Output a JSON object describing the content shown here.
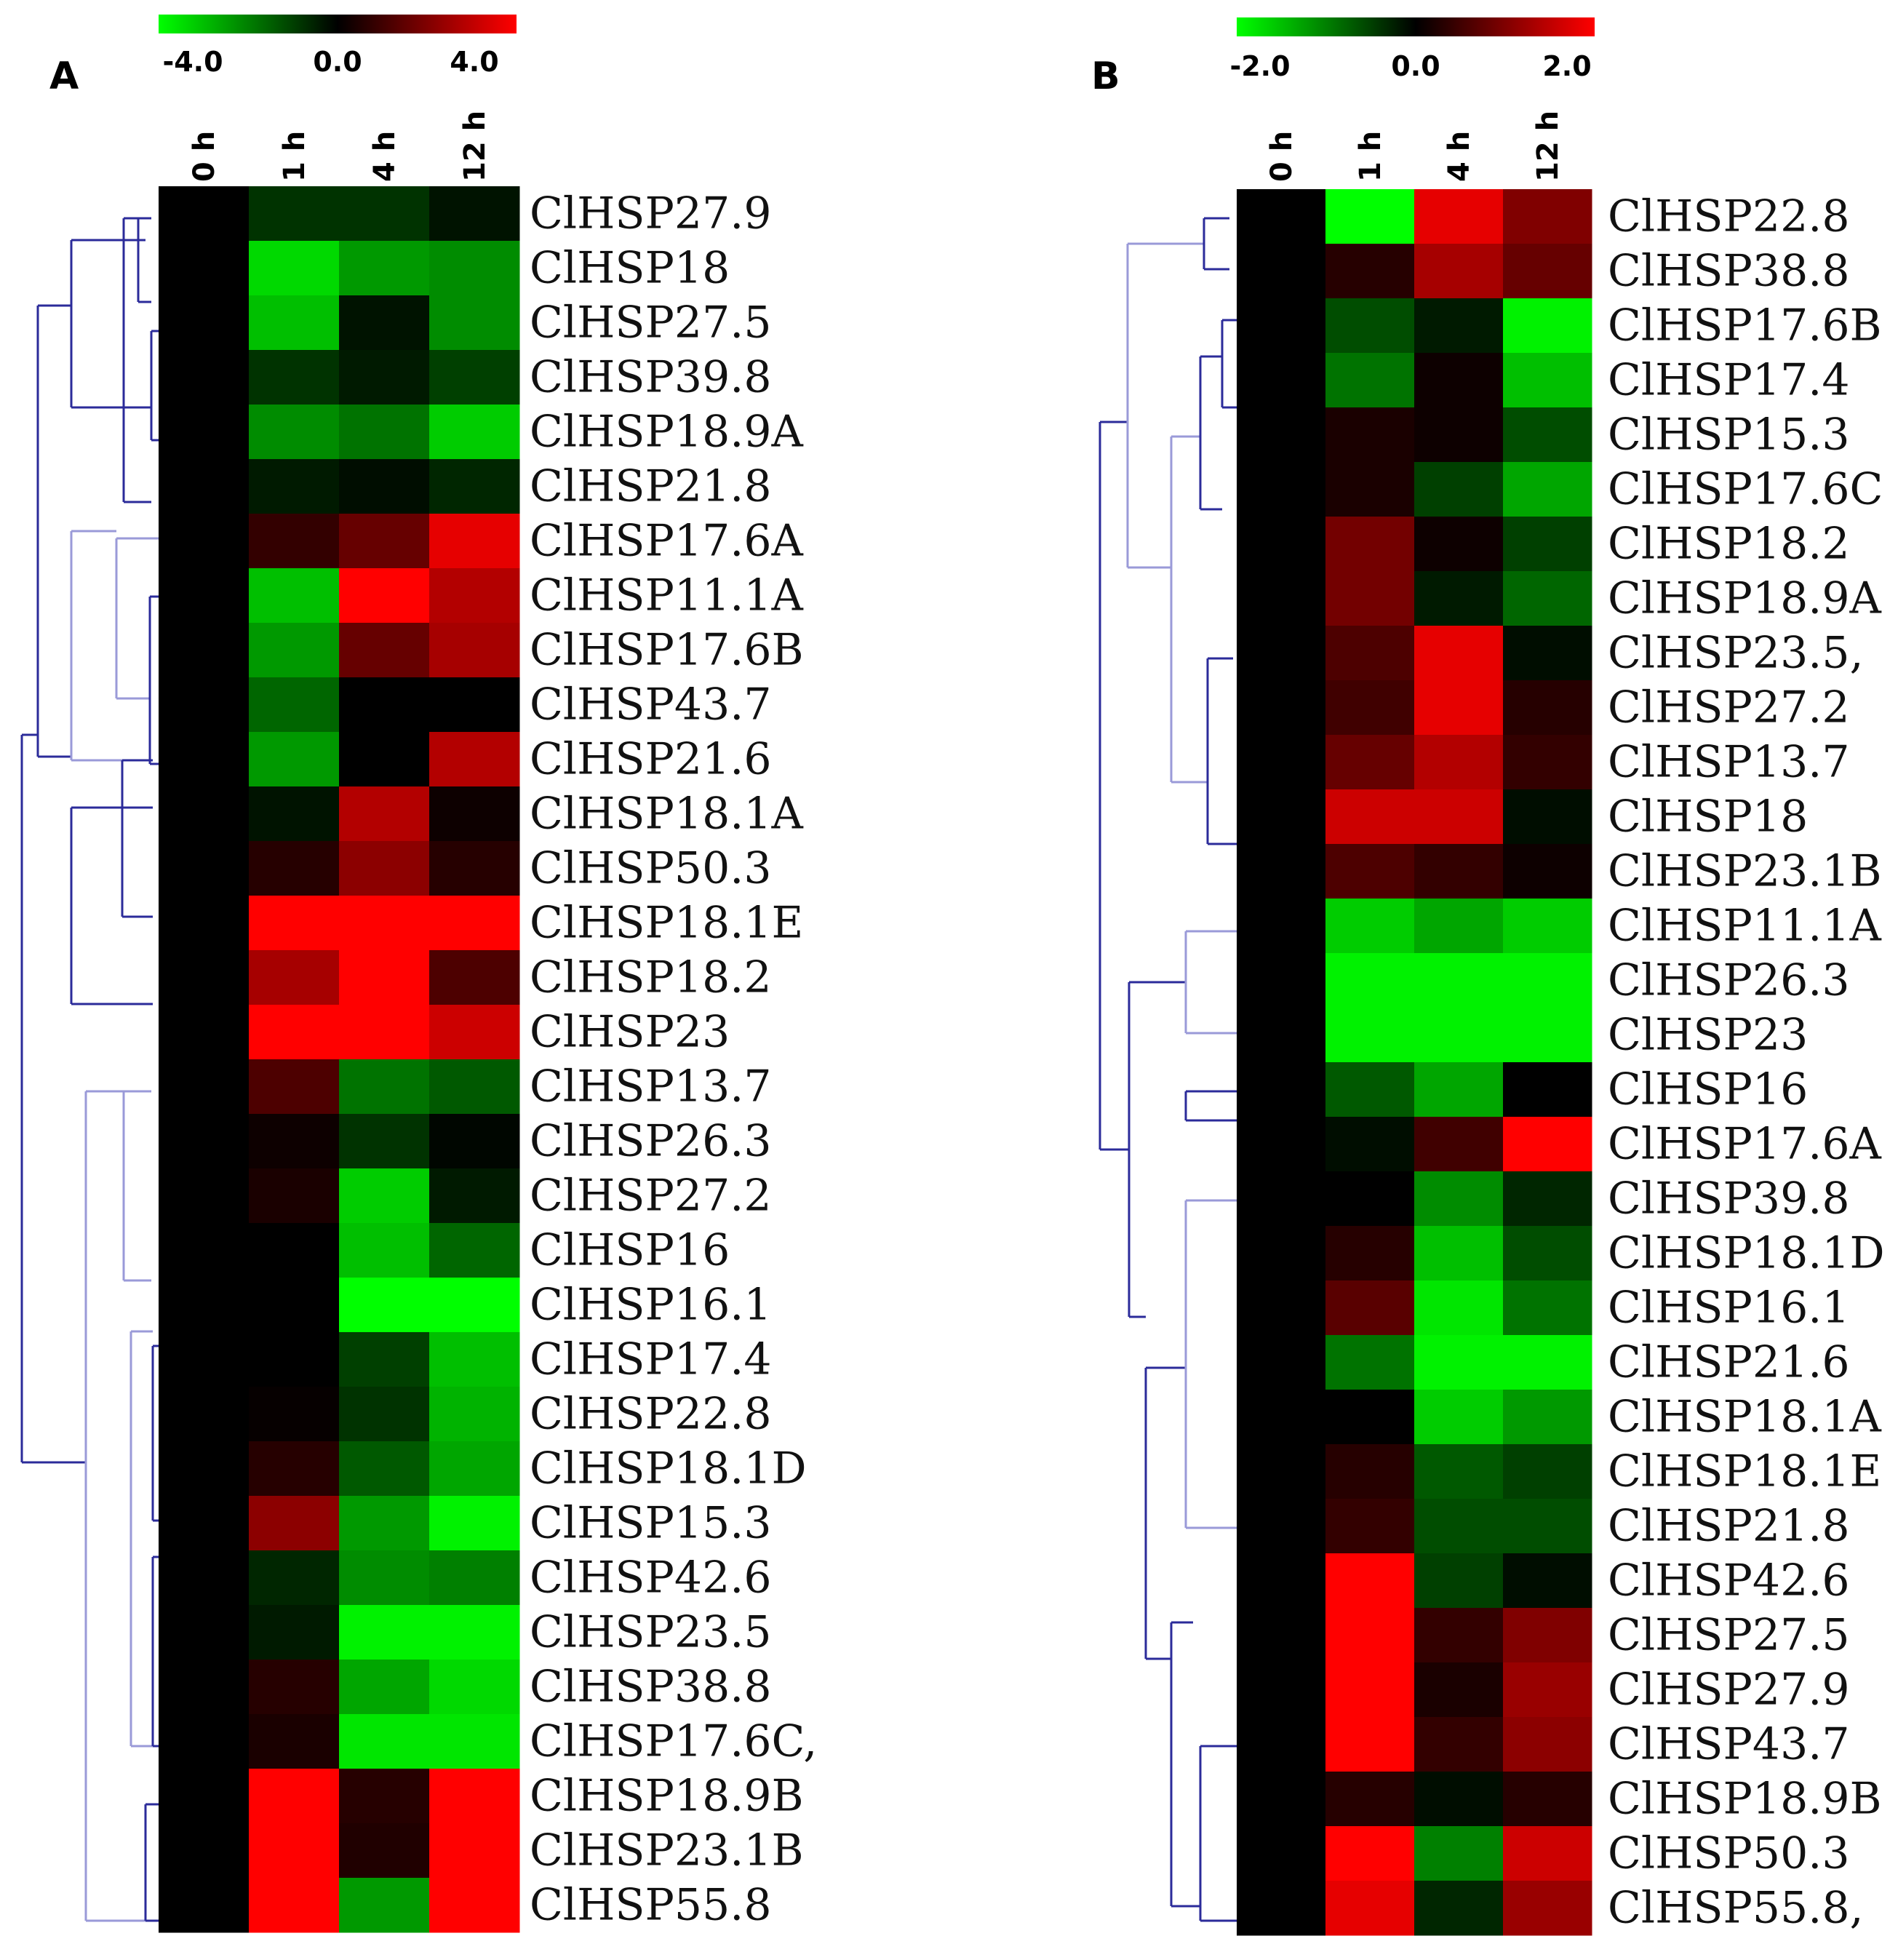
{
  "chart_data": [
    {
      "type": "heatmap",
      "panel": "A",
      "columns": [
        "0 h",
        "1 h",
        "4 h",
        "12 h"
      ],
      "color_scale": {
        "min": -4.0,
        "mid": 0.0,
        "max": 4.0,
        "labels": [
          "-4.0",
          "0.0",
          "4.0"
        ],
        "low_color": "#00ff00",
        "mid_color": "#000000",
        "high_color": "#ff0000"
      },
      "rows": [
        "ClHSP27.9",
        "ClHSP18",
        "ClHSP27.5",
        "ClHSP39.8",
        "ClHSP18.9A",
        "ClHSP21.8",
        "ClHSP17.6A",
        "ClHSP11.1A",
        "ClHSP17.6B",
        "ClHSP43.7",
        "ClHSP21.6",
        "ClHSP18.1A",
        "ClHSP50.3",
        "ClHSP18.1E",
        "ClHSP18.2",
        "ClHSP23",
        "ClHSP13.7",
        "ClHSP26.3",
        "ClHSP27.2",
        "ClHSP16",
        "ClHSP16.1",
        "ClHSP17.4",
        "ClHSP22.8",
        "ClHSP18.1D",
        "ClHSP15.3",
        "ClHSP42.6",
        "ClHSP23.5",
        "ClHSP38.8",
        "ClHSP17.6C,",
        "ClHSP18.9B",
        "ClHSP23.1B",
        "ClHSP55.8"
      ],
      "values": [
        [
          0,
          -0.8,
          -0.8,
          -0.3
        ],
        [
          0,
          -3.4,
          -2.4,
          -2.2
        ],
        [
          0,
          -3.0,
          -0.3,
          -2.2
        ],
        [
          0,
          -0.8,
          -0.4,
          -1.0
        ],
        [
          0,
          -2.2,
          -1.8,
          -3.2
        ],
        [
          0,
          -0.4,
          -0.2,
          -0.6
        ],
        [
          0,
          0.8,
          1.6,
          3.6
        ],
        [
          0,
          -3.0,
          4.0,
          2.8
        ],
        [
          0,
          -2.4,
          1.6,
          2.6
        ],
        [
          0,
          -1.6,
          0.0,
          0.0
        ],
        [
          0,
          -2.4,
          0.0,
          2.8
        ],
        [
          0,
          -0.3,
          2.8,
          0.2
        ],
        [
          0,
          0.6,
          2.2,
          0.6
        ],
        [
          0,
          4.0,
          4.0,
          4.0
        ],
        [
          0,
          2.6,
          4.0,
          1.2
        ],
        [
          0,
          4.0,
          4.0,
          3.2
        ],
        [
          0,
          1.2,
          -1.8,
          -1.4
        ],
        [
          0,
          0.2,
          -0.8,
          -0.1
        ],
        [
          0,
          0.4,
          -3.2,
          -0.4
        ],
        [
          0,
          0.0,
          -3.0,
          -1.6
        ],
        [
          0,
          0.0,
          -4.0,
          -4.0
        ],
        [
          0,
          0.0,
          -1.0,
          -3.0
        ],
        [
          0,
          0.1,
          -0.8,
          -2.8
        ],
        [
          0,
          0.6,
          -1.4,
          -2.6
        ],
        [
          0,
          2.2,
          -2.4,
          -3.8
        ],
        [
          0,
          -0.6,
          -2.2,
          -2.0
        ],
        [
          0,
          -0.4,
          -3.8,
          -3.8
        ],
        [
          0,
          0.6,
          -2.6,
          -3.4
        ],
        [
          0,
          0.4,
          -3.6,
          -3.6
        ],
        [
          0,
          4.0,
          0.6,
          4.0
        ],
        [
          0,
          4.0,
          0.5,
          4.0
        ],
        [
          0,
          4.0,
          -2.4,
          4.0
        ]
      ]
    },
    {
      "type": "heatmap",
      "panel": "B",
      "columns": [
        "0 h",
        "1 h",
        "4 h",
        "12 h"
      ],
      "color_scale": {
        "min": -2.0,
        "mid": 0.0,
        "max": 2.0,
        "labels": [
          "-2.0",
          "0.0",
          "2.0"
        ],
        "low_color": "#00ff00",
        "mid_color": "#000000",
        "high_color": "#ff0000"
      },
      "rows": [
        "ClHSP22.8",
        "ClHSP38.8",
        "ClHSP17.6B",
        "ClHSP17.4",
        "ClHSP15.3",
        "ClHSP17.6C",
        "ClHSP18.2",
        "ClHSP18.9A",
        "ClHSP23.5,",
        "ClHSP27.2",
        "ClHSP13.7",
        "ClHSP18",
        "ClHSP23.1B",
        "ClHSP11.1A",
        "ClHSP26.3",
        "ClHSP23",
        "ClHSP16",
        "ClHSP17.6A",
        "ClHSP39.8",
        "ClHSP18.1D",
        "ClHSP16.1",
        "ClHSP21.6",
        "ClHSP18.1A",
        "ClHSP18.1E",
        "ClHSP21.8",
        "ClHSP42.6",
        "ClHSP27.5",
        "ClHSP27.9",
        "ClHSP43.7",
        "ClHSP18.9B",
        "ClHSP50.3",
        "ClHSP55.8,"
      ],
      "values": [
        [
          0,
          -2.0,
          1.8,
          1.0
        ],
        [
          0,
          0.3,
          1.3,
          0.8
        ],
        [
          0,
          -0.6,
          -0.2,
          -1.9
        ],
        [
          0,
          -0.9,
          0.1,
          -1.5
        ],
        [
          0,
          0.2,
          0.1,
          -0.6
        ],
        [
          0,
          0.2,
          -0.5,
          -1.3
        ],
        [
          0,
          0.9,
          0.1,
          -0.5
        ],
        [
          0,
          0.9,
          -0.2,
          -0.8
        ],
        [
          0,
          0.6,
          1.8,
          -0.1
        ],
        [
          0,
          0.5,
          1.8,
          0.3
        ],
        [
          0,
          0.8,
          1.4,
          0.4
        ],
        [
          0,
          1.6,
          1.6,
          -0.1
        ],
        [
          0,
          0.6,
          0.4,
          0.1
        ],
        [
          0,
          -1.6,
          -1.3,
          -1.6
        ],
        [
          0,
          -1.9,
          -1.9,
          -1.9
        ],
        [
          0,
          -1.9,
          -1.9,
          -1.9
        ],
        [
          0,
          -0.7,
          -1.3,
          0.0
        ],
        [
          0,
          -0.1,
          0.5,
          2.0
        ],
        [
          0,
          0.0,
          -1.1,
          -0.3
        ],
        [
          0,
          0.3,
          -1.5,
          -0.6
        ],
        [
          0,
          0.7,
          -1.8,
          -0.9
        ],
        [
          0,
          -0.9,
          -1.9,
          -1.9
        ],
        [
          0,
          0.0,
          -1.6,
          -1.2
        ],
        [
          0,
          0.3,
          -0.7,
          -0.5
        ],
        [
          0,
          0.4,
          -0.6,
          -0.6
        ],
        [
          0,
          2.0,
          -0.5,
          -0.1
        ],
        [
          0,
          2.0,
          0.4,
          1.0
        ],
        [
          0,
          2.0,
          0.2,
          1.2
        ],
        [
          0,
          2.0,
          0.4,
          1.1
        ],
        [
          0,
          0.3,
          -0.1,
          0.3
        ],
        [
          0,
          2.0,
          -1.0,
          1.6
        ],
        [
          0,
          1.8,
          -0.3,
          1.2
        ]
      ]
    }
  ]
}
